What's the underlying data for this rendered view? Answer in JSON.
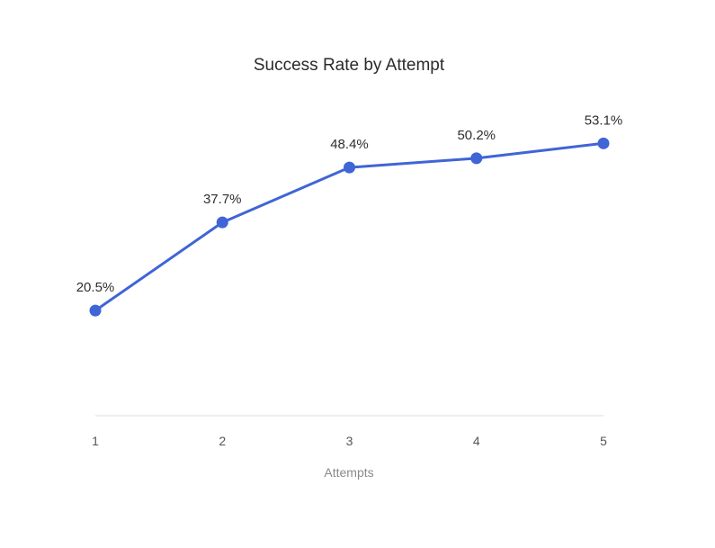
{
  "chart_data": {
    "type": "line",
    "title": "Success Rate by Attempt",
    "xlabel": "Attempts",
    "ylabel": "",
    "categories": [
      "1",
      "2",
      "3",
      "4",
      "5"
    ],
    "series": [
      {
        "values": [
          20.5,
          37.7,
          48.4,
          50.2,
          53.1
        ],
        "labels": [
          "20.5%",
          "37.7%",
          "48.4%",
          "50.2%",
          "53.1%"
        ]
      }
    ],
    "ylim": [
      0,
      60
    ],
    "grid": false,
    "legend": "none"
  },
  "colors": {
    "series": "#3f65d6",
    "baseline": "#e4e4e4"
  }
}
